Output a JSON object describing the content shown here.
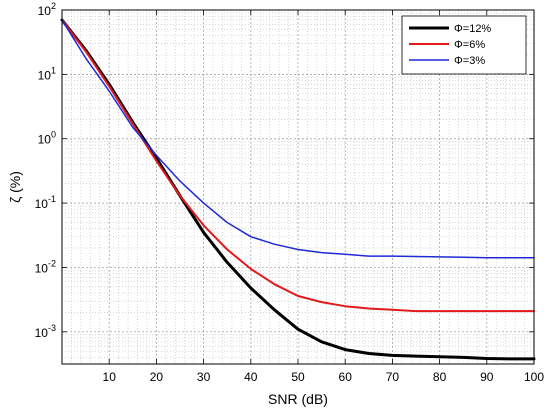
{
  "chart_data": {
    "type": "line",
    "xlabel": "SNR (dB)",
    "ylabel": "ζ (%)",
    "xlim": [
      0,
      100
    ],
    "ylim_log10": [
      -3.5,
      2
    ],
    "y_scale": "log",
    "grid": true,
    "grid_minor": true,
    "legend_position": "top-right",
    "x_ticks": [
      10,
      20,
      30,
      40,
      50,
      60,
      70,
      80,
      90,
      100
    ],
    "x_tick_labels": [
      "10",
      "20",
      "30",
      "40",
      "50",
      "60",
      "70",
      "80",
      "90",
      "100"
    ],
    "y_ticks": [
      {
        "exp": -3,
        "base": "10",
        "sup": "-3"
      },
      {
        "exp": -2,
        "base": "10",
        "sup": "-2"
      },
      {
        "exp": -1,
        "base": "10",
        "sup": "-1"
      },
      {
        "exp": 0,
        "base": "10",
        "sup": "0"
      },
      {
        "exp": 1,
        "base": "10",
        "sup": "1"
      },
      {
        "exp": 2,
        "base": "10",
        "sup": "2"
      }
    ],
    "series": [
      {
        "name": "Φ=12%",
        "color": "#000000",
        "width": 3,
        "x": [
          0,
          5,
          10,
          15,
          20,
          25,
          30,
          35,
          40,
          45,
          50,
          55,
          60,
          65,
          70,
          75,
          80,
          85,
          90,
          95,
          100
        ],
        "y": [
          70,
          24,
          7,
          1.8,
          0.5,
          0.13,
          0.035,
          0.012,
          0.0048,
          0.0022,
          0.0011,
          0.0007,
          0.00053,
          0.00046,
          0.00043,
          0.00042,
          0.00041,
          0.0004,
          0.000385,
          0.00038,
          0.00038
        ]
      },
      {
        "name": "Φ=6%",
        "color": "#e31a1c",
        "width": 2,
        "x": [
          0,
          5,
          10,
          15,
          20,
          25,
          30,
          35,
          40,
          45,
          50,
          55,
          60,
          65,
          70,
          75,
          80,
          85,
          90,
          95,
          100
        ],
        "y": [
          70,
          23,
          6.5,
          1.7,
          0.45,
          0.13,
          0.045,
          0.019,
          0.0095,
          0.0055,
          0.0036,
          0.0029,
          0.0025,
          0.0023,
          0.0022,
          0.0021,
          0.0021,
          0.0021,
          0.0021,
          0.0021,
          0.0021
        ]
      },
      {
        "name": "Φ=3%",
        "color": "#1f2ad6",
        "width": 1.5,
        "x": [
          0,
          5,
          10,
          15,
          20,
          25,
          30,
          35,
          40,
          45,
          50,
          55,
          60,
          65,
          70,
          75,
          80,
          85,
          90,
          95,
          100
        ],
        "y": [
          70,
          18,
          5.5,
          1.5,
          0.55,
          0.22,
          0.1,
          0.05,
          0.03,
          0.023,
          0.019,
          0.017,
          0.016,
          0.015,
          0.015,
          0.0148,
          0.0146,
          0.0144,
          0.0142,
          0.0142,
          0.0142
        ]
      }
    ]
  }
}
